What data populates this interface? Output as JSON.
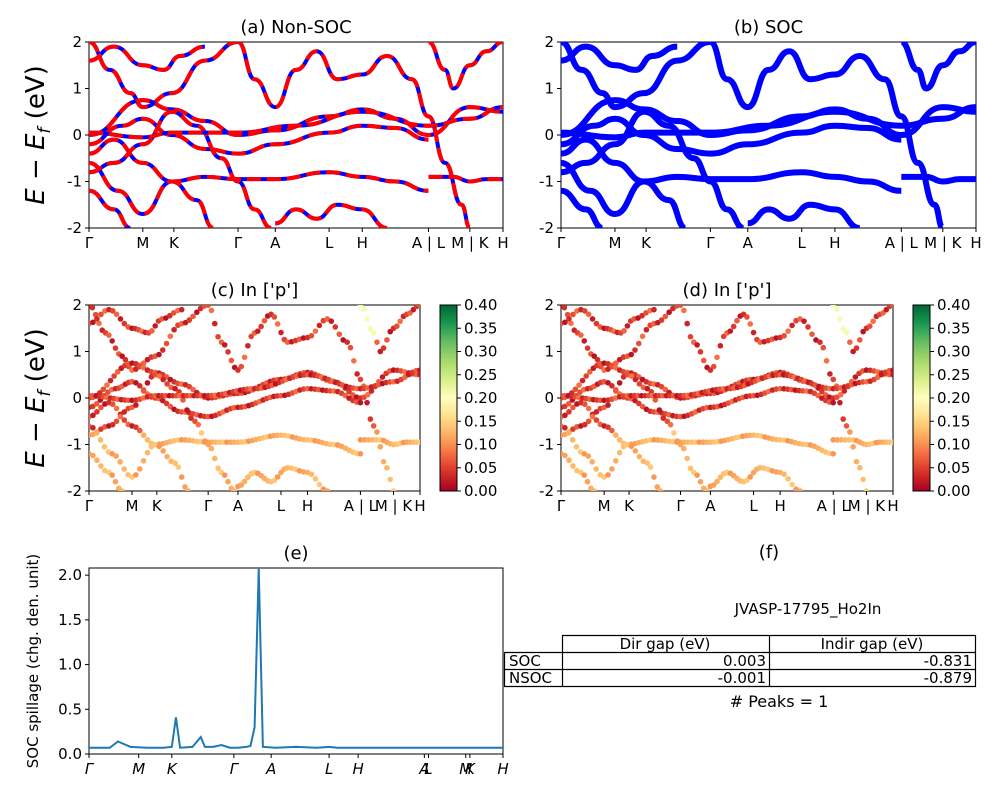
{
  "figure": {
    "ylabel_band": "E − E",
    "ylabel_sub": "f",
    "ylabel_unit": " (eV)",
    "ylabel_spillage": "SOC spillage (chg. den. unit)"
  },
  "chart_data": [
    {
      "id": "a",
      "type": "line",
      "title": "(a) Non-SOC",
      "ylim": [
        -2,
        2
      ],
      "xlim": [
        0,
        100
      ],
      "yticks": [
        "-2",
        "-1",
        "0",
        "1",
        "2"
      ],
      "xtick_labels": [
        "Γ",
        "M",
        "K",
        "Γ",
        "A",
        "L",
        "H",
        "A | L",
        "M | K",
        "H"
      ],
      "xtick_positions": [
        0,
        13,
        20.5,
        36,
        45,
        58,
        66,
        82,
        92,
        100
      ],
      "series_colors": [
        "#ff0000",
        "#0000ff"
      ],
      "style": "red dashed over blue"
    },
    {
      "id": "b",
      "type": "line",
      "title": "(b) SOC",
      "ylim": [
        -2,
        2
      ],
      "xlim": [
        0,
        100
      ],
      "yticks": [
        "-2",
        "-1",
        "0",
        "1",
        "2"
      ],
      "xtick_labels": [
        "Γ",
        "M",
        "K",
        "Γ",
        "A",
        "L",
        "H",
        "A | L",
        "M | K",
        "H"
      ],
      "xtick_positions": [
        0,
        13,
        20.5,
        36,
        45,
        58,
        66,
        82,
        92,
        100
      ],
      "series_colors": [
        "#0000ff"
      ]
    },
    {
      "id": "c",
      "type": "scatter",
      "title": "(c)  In ['p']",
      "ylim": [
        -2,
        2
      ],
      "xlim": [
        0,
        100
      ],
      "yticks": [
        "-2",
        "-1",
        "0",
        "1",
        "2"
      ],
      "xtick_labels": [
        "Γ",
        "M",
        "K",
        "Γ",
        "A",
        "L",
        "H",
        "A | L",
        "M | K",
        "H"
      ],
      "xtick_positions": [
        0,
        13,
        20.5,
        36,
        45,
        58,
        66,
        82,
        92,
        100
      ],
      "colorbar": {
        "min": 0.0,
        "max": 0.4,
        "ticks": [
          "0.00",
          "0.05",
          "0.10",
          "0.15",
          "0.20",
          "0.25",
          "0.30",
          "0.35",
          "0.40"
        ],
        "colormap": "RdYlGn"
      }
    },
    {
      "id": "d",
      "type": "scatter",
      "title": "(d) In ['p']",
      "ylim": [
        -2,
        2
      ],
      "xlim": [
        0,
        100
      ],
      "yticks": [
        "-2",
        "-1",
        "0",
        "1",
        "2"
      ],
      "xtick_labels": [
        "Γ",
        "M",
        "K",
        "Γ",
        "A",
        "L",
        "H",
        "A | L",
        "M | K",
        "H"
      ],
      "xtick_positions": [
        0,
        13,
        20.5,
        36,
        45,
        58,
        66,
        82,
        92,
        100
      ],
      "colorbar": {
        "min": 0.0,
        "max": 0.4,
        "ticks": [
          "0.00",
          "0.05",
          "0.10",
          "0.15",
          "0.20",
          "0.25",
          "0.30",
          "0.35",
          "0.40"
        ],
        "colormap": "RdYlGn"
      }
    },
    {
      "id": "e",
      "type": "line",
      "title": "(e)",
      "ylabel": "SOC spillage (chg. den. unit)",
      "ylim": [
        0,
        2.08
      ],
      "yticks": [
        "0.0",
        "0.5",
        "1.0",
        "1.5",
        "2.0"
      ],
      "xlim": [
        0,
        100
      ],
      "xtick_labels": [
        "Γ",
        "M",
        "K",
        "Γ",
        "A",
        "L",
        "H",
        "A",
        "L",
        "M",
        "K",
        "H"
      ],
      "xtick_positions": [
        0,
        12,
        20,
        35,
        44,
        58,
        65,
        81,
        82,
        91,
        92,
        100
      ],
      "color": "#1f77b4",
      "x": [
        0,
        3,
        5,
        7,
        10,
        14,
        18,
        20,
        21,
        22,
        25,
        27,
        28,
        30,
        32,
        34,
        36,
        38,
        39,
        40,
        41,
        42,
        45,
        50,
        55,
        58,
        60,
        65,
        70,
        75,
        80,
        82,
        85,
        88,
        91,
        92,
        95,
        100
      ],
      "values": [
        0.07,
        0.07,
        0.07,
        0.14,
        0.08,
        0.07,
        0.07,
        0.08,
        0.41,
        0.07,
        0.08,
        0.19,
        0.08,
        0.08,
        0.1,
        0.07,
        0.07,
        0.08,
        0.09,
        0.3,
        2.07,
        0.08,
        0.07,
        0.08,
        0.07,
        0.08,
        0.07,
        0.07,
        0.07,
        0.07,
        0.07,
        0.07,
        0.07,
        0.07,
        0.07,
        0.07,
        0.07,
        0.07
      ]
    }
  ],
  "panel_f": {
    "title": "(f)",
    "label": "JVASP-17795_Ho2In",
    "table": {
      "headers": [
        "",
        "Dir gap (eV)",
        "Indir gap (eV)"
      ],
      "rows": [
        [
          "SOC",
          "0.003",
          "-0.831"
        ],
        [
          "NSOC",
          "-0.001",
          "-0.879"
        ]
      ]
    },
    "peaks": "# Peaks = 1"
  }
}
